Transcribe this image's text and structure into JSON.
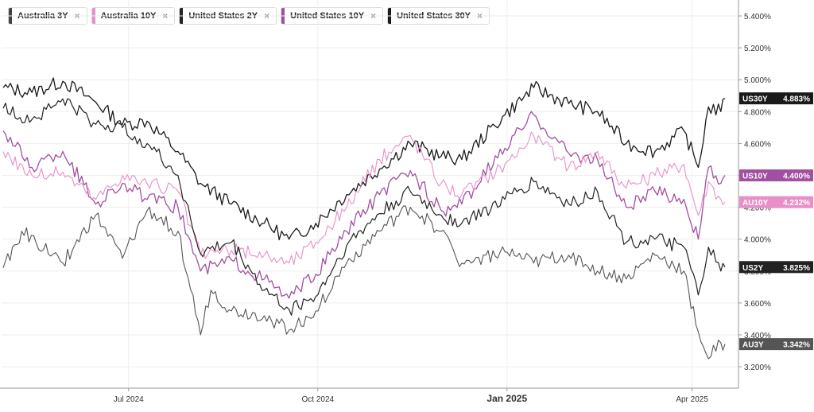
{
  "legend": [
    {
      "label": "Australia 3Y",
      "color": "#444444",
      "close": "×"
    },
    {
      "label": "Australia 10Y",
      "color": "#e88fc7",
      "close": "×"
    },
    {
      "label": "United States 2Y",
      "color": "#222222",
      "close": "×"
    },
    {
      "label": "United States 10Y",
      "color": "#a14fa0",
      "close": "×"
    },
    {
      "label": "United States 30Y",
      "color": "#1a1a1a",
      "close": "×"
    }
  ],
  "chart_data": {
    "type": "line",
    "x_start": "2024-05-01",
    "x_end": "2025-04-17",
    "ylim": [
      3.1,
      5.5
    ],
    "yticks": [
      "5.400%",
      "5.200%",
      "5.000%",
      "4.800%",
      "4.600%",
      "4.400%",
      "4.200%",
      "4.000%",
      "3.800%",
      "3.600%",
      "3.400%",
      "3.200%"
    ],
    "ytick_values": [
      5.4,
      5.2,
      5.0,
      4.8,
      4.6,
      4.4,
      4.2,
      4.0,
      3.8,
      3.6,
      3.4,
      3.2
    ],
    "xticks": [
      {
        "label": "Jul 2024",
        "date": "2024-07-01",
        "major": false
      },
      {
        "label": "Oct 2024",
        "date": "2024-10-01",
        "major": false
      },
      {
        "label": "Jan 2025",
        "date": "2025-01-01",
        "major": true
      },
      {
        "label": "Apr 2025",
        "date": "2025-04-01",
        "major": false
      }
    ],
    "series": [
      {
        "name": "US30Y",
        "color": "#1a1a1a",
        "width": 1.3,
        "points": [
          [
            "2024-05-01",
            4.95
          ],
          [
            "2024-05-15",
            4.92
          ],
          [
            "2024-05-30",
            4.99
          ],
          [
            "2024-06-15",
            4.86
          ],
          [
            "2024-06-28",
            4.72
          ],
          [
            "2024-07-10",
            4.74
          ],
          [
            "2024-07-25",
            4.55
          ],
          [
            "2024-08-05",
            4.35
          ],
          [
            "2024-08-20",
            4.22
          ],
          [
            "2024-09-05",
            4.1
          ],
          [
            "2024-09-17",
            4.0
          ],
          [
            "2024-09-30",
            4.1
          ],
          [
            "2024-10-15",
            4.28
          ],
          [
            "2024-10-31",
            4.44
          ],
          [
            "2024-11-15",
            4.6
          ],
          [
            "2024-11-30",
            4.52
          ],
          [
            "2024-12-10",
            4.5
          ],
          [
            "2024-12-31",
            4.78
          ],
          [
            "2025-01-14",
            4.95
          ],
          [
            "2025-01-31",
            4.85
          ],
          [
            "2025-02-14",
            4.8
          ],
          [
            "2025-02-28",
            4.6
          ],
          [
            "2025-03-14",
            4.55
          ],
          [
            "2025-03-28",
            4.68
          ],
          [
            "2025-04-04",
            4.45
          ],
          [
            "2025-04-09",
            4.83
          ],
          [
            "2025-04-15",
            4.8
          ],
          [
            "2025-04-17",
            4.883
          ]
        ]
      },
      {
        "name": "US10Y",
        "color": "#a14fa0",
        "width": 1.3,
        "points": [
          [
            "2024-05-01",
            4.68
          ],
          [
            "2024-05-15",
            4.45
          ],
          [
            "2024-05-30",
            4.55
          ],
          [
            "2024-06-15",
            4.22
          ],
          [
            "2024-06-28",
            4.35
          ],
          [
            "2024-07-10",
            4.25
          ],
          [
            "2024-07-25",
            4.2
          ],
          [
            "2024-08-05",
            3.8
          ],
          [
            "2024-08-20",
            3.87
          ],
          [
            "2024-09-05",
            3.75
          ],
          [
            "2024-09-17",
            3.63
          ],
          [
            "2024-09-30",
            3.78
          ],
          [
            "2024-10-15",
            4.05
          ],
          [
            "2024-10-31",
            4.28
          ],
          [
            "2024-11-15",
            4.43
          ],
          [
            "2024-11-30",
            4.18
          ],
          [
            "2024-12-10",
            4.22
          ],
          [
            "2024-12-31",
            4.57
          ],
          [
            "2025-01-14",
            4.78
          ],
          [
            "2025-01-31",
            4.54
          ],
          [
            "2025-02-14",
            4.5
          ],
          [
            "2025-02-28",
            4.2
          ],
          [
            "2025-03-14",
            4.3
          ],
          [
            "2025-03-28",
            4.25
          ],
          [
            "2025-04-04",
            4.0
          ],
          [
            "2025-04-09",
            4.45
          ],
          [
            "2025-04-15",
            4.35
          ],
          [
            "2025-04-17",
            4.4
          ]
        ]
      },
      {
        "name": "AU10Y",
        "color": "#e88fc7",
        "width": 1.1,
        "points": [
          [
            "2024-05-01",
            4.55
          ],
          [
            "2024-05-15",
            4.4
          ],
          [
            "2024-05-30",
            4.42
          ],
          [
            "2024-06-15",
            4.25
          ],
          [
            "2024-06-28",
            4.4
          ],
          [
            "2024-07-10",
            4.35
          ],
          [
            "2024-07-25",
            4.3
          ],
          [
            "2024-08-05",
            3.9
          ],
          [
            "2024-08-20",
            3.93
          ],
          [
            "2024-09-05",
            3.9
          ],
          [
            "2024-09-17",
            3.85
          ],
          [
            "2024-09-30",
            3.98
          ],
          [
            "2024-10-15",
            4.2
          ],
          [
            "2024-10-31",
            4.5
          ],
          [
            "2024-11-15",
            4.65
          ],
          [
            "2024-11-30",
            4.35
          ],
          [
            "2024-12-10",
            4.28
          ],
          [
            "2024-12-31",
            4.47
          ],
          [
            "2025-01-14",
            4.65
          ],
          [
            "2025-01-31",
            4.45
          ],
          [
            "2025-02-14",
            4.55
          ],
          [
            "2025-02-28",
            4.32
          ],
          [
            "2025-03-14",
            4.4
          ],
          [
            "2025-03-28",
            4.47
          ],
          [
            "2025-04-04",
            4.15
          ],
          [
            "2025-04-09",
            4.36
          ],
          [
            "2025-04-15",
            4.25
          ],
          [
            "2025-04-17",
            4.232
          ]
        ]
      },
      {
        "name": "US2Y",
        "color": "#222222",
        "width": 1.2,
        "points": [
          [
            "2024-05-01",
            4.82
          ],
          [
            "2024-05-15",
            4.75
          ],
          [
            "2024-05-30",
            4.88
          ],
          [
            "2024-06-15",
            4.72
          ],
          [
            "2024-06-28",
            4.7
          ],
          [
            "2024-07-10",
            4.6
          ],
          [
            "2024-07-25",
            4.4
          ],
          [
            "2024-08-05",
            3.91
          ],
          [
            "2024-08-20",
            3.98
          ],
          [
            "2024-09-05",
            3.68
          ],
          [
            "2024-09-17",
            3.56
          ],
          [
            "2024-09-30",
            3.64
          ],
          [
            "2024-10-15",
            3.96
          ],
          [
            "2024-10-31",
            4.16
          ],
          [
            "2024-11-15",
            4.3
          ],
          [
            "2024-11-30",
            4.15
          ],
          [
            "2024-12-10",
            4.1
          ],
          [
            "2024-12-31",
            4.25
          ],
          [
            "2025-01-14",
            4.36
          ],
          [
            "2025-01-31",
            4.22
          ],
          [
            "2025-02-14",
            4.3
          ],
          [
            "2025-02-28",
            3.98
          ],
          [
            "2025-03-14",
            4.0
          ],
          [
            "2025-03-28",
            3.95
          ],
          [
            "2025-04-04",
            3.65
          ],
          [
            "2025-04-09",
            3.95
          ],
          [
            "2025-04-15",
            3.8
          ],
          [
            "2025-04-17",
            3.825
          ]
        ]
      },
      {
        "name": "AU3Y",
        "color": "#555555",
        "width": 1.1,
        "points": [
          [
            "2024-05-01",
            3.82
          ],
          [
            "2024-05-10",
            4.05
          ],
          [
            "2024-05-30",
            3.85
          ],
          [
            "2024-06-15",
            4.15
          ],
          [
            "2024-06-28",
            3.88
          ],
          [
            "2024-07-10",
            4.18
          ],
          [
            "2024-07-25",
            4.05
          ],
          [
            "2024-08-05",
            3.4
          ],
          [
            "2024-08-10",
            3.68
          ],
          [
            "2024-08-20",
            3.55
          ],
          [
            "2024-09-05",
            3.52
          ],
          [
            "2024-09-17",
            3.43
          ],
          [
            "2024-09-30",
            3.55
          ],
          [
            "2024-10-15",
            3.85
          ],
          [
            "2024-10-31",
            4.05
          ],
          [
            "2024-11-15",
            4.2
          ],
          [
            "2024-11-30",
            4.05
          ],
          [
            "2024-12-10",
            3.85
          ],
          [
            "2024-12-31",
            3.92
          ],
          [
            "2025-01-14",
            3.85
          ],
          [
            "2025-01-31",
            3.9
          ],
          [
            "2025-02-14",
            3.8
          ],
          [
            "2025-02-28",
            3.75
          ],
          [
            "2025-03-14",
            3.9
          ],
          [
            "2025-03-28",
            3.8
          ],
          [
            "2025-04-04",
            3.42
          ],
          [
            "2025-04-09",
            3.25
          ],
          [
            "2025-04-15",
            3.35
          ],
          [
            "2025-04-17",
            3.342
          ]
        ]
      }
    ],
    "badges": [
      {
        "name": "US30Y",
        "label": "US30Y",
        "value": "4.883%",
        "y": 4.883,
        "bg": "#1a1a1a"
      },
      {
        "name": "US10Y",
        "label": "US10Y",
        "value": "4.400%",
        "y": 4.4,
        "bg": "#a14fa0"
      },
      {
        "name": "AU10Y",
        "label": "AU10Y",
        "value": "4.232%",
        "y": 4.232,
        "bg": "#e88fc7"
      },
      {
        "name": "US2Y",
        "label": "US2Y",
        "value": "3.825%",
        "y": 3.825,
        "bg": "#222222"
      },
      {
        "name": "AU3Y",
        "label": "AU3Y",
        "value": "3.342%",
        "y": 3.342,
        "bg": "#555555"
      }
    ]
  }
}
